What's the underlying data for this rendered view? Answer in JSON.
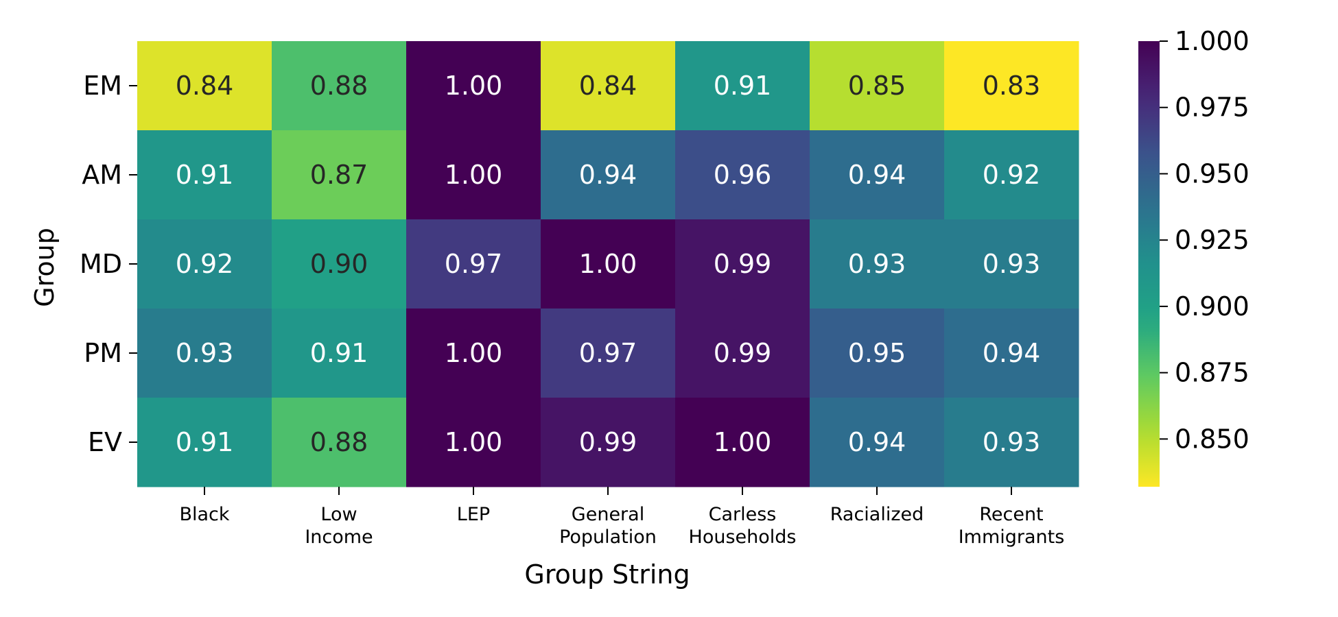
{
  "chart_data": {
    "type": "heatmap",
    "title": "",
    "xlabel": "Group String",
    "ylabel": "Group",
    "x_categories": [
      [
        "Black"
      ],
      [
        "Low",
        "Income"
      ],
      [
        "LEP"
      ],
      [
        "General",
        "Population"
      ],
      [
        "Carless",
        "Households"
      ],
      [
        "Racialized"
      ],
      [
        "Recent",
        "Immigrants"
      ]
    ],
    "y_categories": [
      "EM",
      "AM",
      "MD",
      "PM",
      "EV"
    ],
    "values": [
      [
        0.84,
        0.88,
        1.0,
        0.84,
        0.91,
        0.85,
        0.83
      ],
      [
        0.91,
        0.87,
        1.0,
        0.94,
        0.96,
        0.94,
        0.92
      ],
      [
        0.92,
        0.9,
        0.97,
        1.0,
        0.99,
        0.93,
        0.93
      ],
      [
        0.93,
        0.91,
        1.0,
        0.97,
        0.99,
        0.95,
        0.94
      ],
      [
        0.91,
        0.88,
        1.0,
        0.99,
        1.0,
        0.94,
        0.93
      ]
    ],
    "value_labels": [
      [
        "0.84",
        "0.88",
        "1.00",
        "0.84",
        "0.91",
        "0.85",
        "0.83"
      ],
      [
        "0.91",
        "0.87",
        "1.00",
        "0.94",
        "0.96",
        "0.94",
        "0.92"
      ],
      [
        "0.92",
        "0.90",
        "0.97",
        "1.00",
        "0.99",
        "0.93",
        "0.93"
      ],
      [
        "0.93",
        "0.91",
        "1.00",
        "0.97",
        "0.99",
        "0.95",
        "0.94"
      ],
      [
        "0.91",
        "0.88",
        "1.00",
        "0.99",
        "1.00",
        "0.94",
        "0.93"
      ]
    ],
    "colormap": "viridis (reversed)",
    "color_range": [
      0.832,
      1.0
    ],
    "colorbar_ticks": [
      "1.000",
      "0.975",
      "0.950",
      "0.925",
      "0.900",
      "0.875",
      "0.850"
    ],
    "colorbar_tick_values": [
      1.0,
      0.975,
      0.95,
      0.925,
      0.9,
      0.875,
      0.85
    ],
    "annotation_colors": {
      "dark_text": "#262626",
      "light_text": "#ffffff"
    }
  }
}
